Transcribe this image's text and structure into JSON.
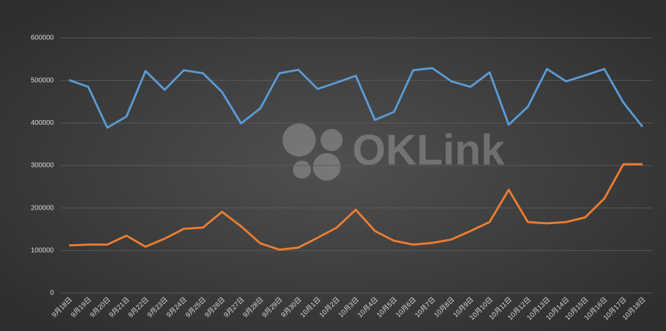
{
  "chart_data": {
    "type": "line",
    "watermark": "OKLink",
    "categories": [
      "9月18日",
      "9月19日",
      "9月20日",
      "9月21日",
      "9月22日",
      "9月23日",
      "9月24日",
      "9月25日",
      "9月26日",
      "9月27日",
      "9月28日",
      "9月29日",
      "9月30日",
      "10月1日",
      "10月2日",
      "10月3日",
      "10月4日",
      "10月5日",
      "10月6日",
      "10月7日",
      "10月8日",
      "10月9日",
      "10月10日",
      "10月11日",
      "10月12日",
      "10月13日",
      "10月14日",
      "10月15日",
      "10月16日",
      "10月17日",
      "10月18日"
    ],
    "series": [
      {
        "color": "#5b9bd5",
        "values": [
          501000,
          485000,
          389000,
          415000,
          522000,
          478000,
          524000,
          517000,
          473000,
          399000,
          434000,
          517000,
          525000,
          480000,
          495000,
          511000,
          407000,
          426000,
          524000,
          529000,
          498000,
          485000,
          519000,
          396000,
          438000,
          527000,
          498000,
          512000,
          527000,
          448000,
          391000
        ]
      },
      {
        "color": "#ed7d31",
        "values": [
          112000,
          114000,
          114000,
          135000,
          109000,
          128000,
          151000,
          154000,
          191000,
          157000,
          117000,
          102000,
          107000,
          130000,
          154000,
          196000,
          146000,
          123000,
          114000,
          118000,
          126000,
          146000,
          167000,
          243000,
          167000,
          164000,
          167000,
          178000,
          222000,
          303000,
          303000
        ]
      }
    ],
    "ylim": [
      0,
      600000
    ],
    "yticks": [
      0,
      100000,
      200000,
      300000,
      400000,
      500000,
      600000
    ],
    "grid": true
  }
}
